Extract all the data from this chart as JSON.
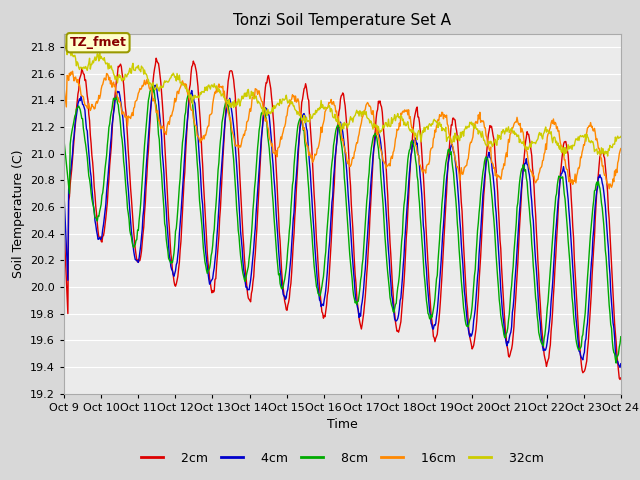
{
  "title": "Tonzi Soil Temperature Set A",
  "xlabel": "Time",
  "ylabel": "Soil Temperature (C)",
  "ylim": [
    19.2,
    21.9
  ],
  "figsize": [
    6.4,
    4.8
  ],
  "dpi": 100,
  "background_color": "#d8d8d8",
  "plot_bg_color": "#ebebeb",
  "grid_color": "#ffffff",
  "legend_labels": [
    "2cm",
    "4cm",
    "8cm",
    "16cm",
    "32cm"
  ],
  "legend_colors": [
    "#dd0000",
    "#0000cc",
    "#00aa00",
    "#ff8800",
    "#cccc00"
  ],
  "annotation_text": "TZ_fmet",
  "annotation_bg": "#ffffcc",
  "annotation_border": "#999900",
  "annotation_text_color": "#880000",
  "xtick_labels": [
    "Oct 9",
    "Oct 10",
    "Oct 11",
    "Oct 12",
    "Oct 13",
    "Oct 14",
    "Oct 15",
    "Oct 16",
    "Oct 17",
    "Oct 18",
    "Oct 19",
    "Oct 20",
    "Oct 21",
    "Oct 22",
    "Oct 23",
    "Oct 24"
  ],
  "n_points": 720,
  "n_days": 15
}
